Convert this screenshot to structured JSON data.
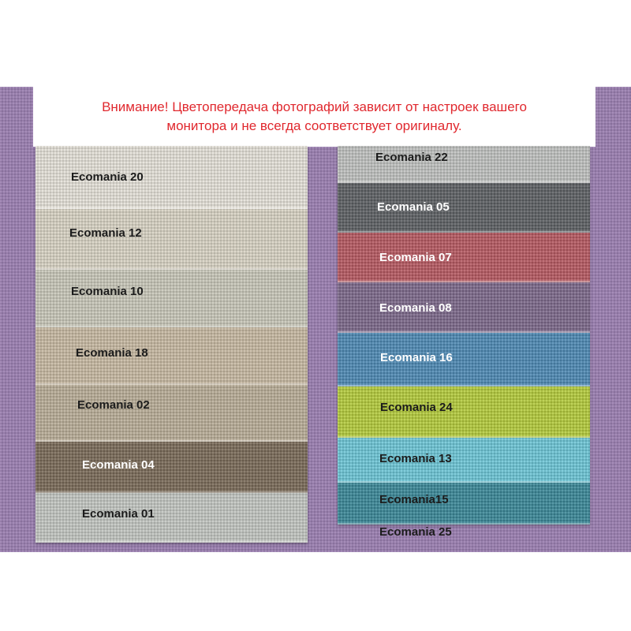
{
  "notice": {
    "line1": "Внимание! Цветопередача фотографий зависит от настроек вашего",
    "line2": "монитора и не всегда соответствует оригиналу."
  },
  "swatches_left": [
    {
      "label": "Ecomania 20",
      "color": "#e4e1d8"
    },
    {
      "label": "Ecomania 12",
      "color": "#d8d3c3"
    },
    {
      "label": "Ecomania 10",
      "color": "#c8c7b8"
    },
    {
      "label": "Ecomania 18",
      "color": "#c7b8a2"
    },
    {
      "label": "Ecomania 02",
      "color": "#b8ac97"
    },
    {
      "label": "Ecomania 04",
      "color": "#7a6a58"
    },
    {
      "label": "Ecomania 01",
      "color": "#c2c6c1"
    }
  ],
  "swatches_right": [
    {
      "label": "Ecomania 22",
      "color": "#bfc1bf"
    },
    {
      "label": "Ecomania 05",
      "color": "#5d6164"
    },
    {
      "label": "Ecomania 07",
      "color": "#b65962"
    },
    {
      "label": "Ecomania 08",
      "color": "#7d698b"
    },
    {
      "label": "Ecomania 16",
      "color": "#4e8ab4"
    },
    {
      "label": "Ecomania 24",
      "color": "#b4cb3c"
    },
    {
      "label": "Ecomania 13",
      "color": "#6dc6d6"
    },
    {
      "label": "Ecomania15",
      "color": "#3b8898"
    },
    {
      "label": "Ecomania 25",
      "color": "#9a7eb0"
    }
  ]
}
